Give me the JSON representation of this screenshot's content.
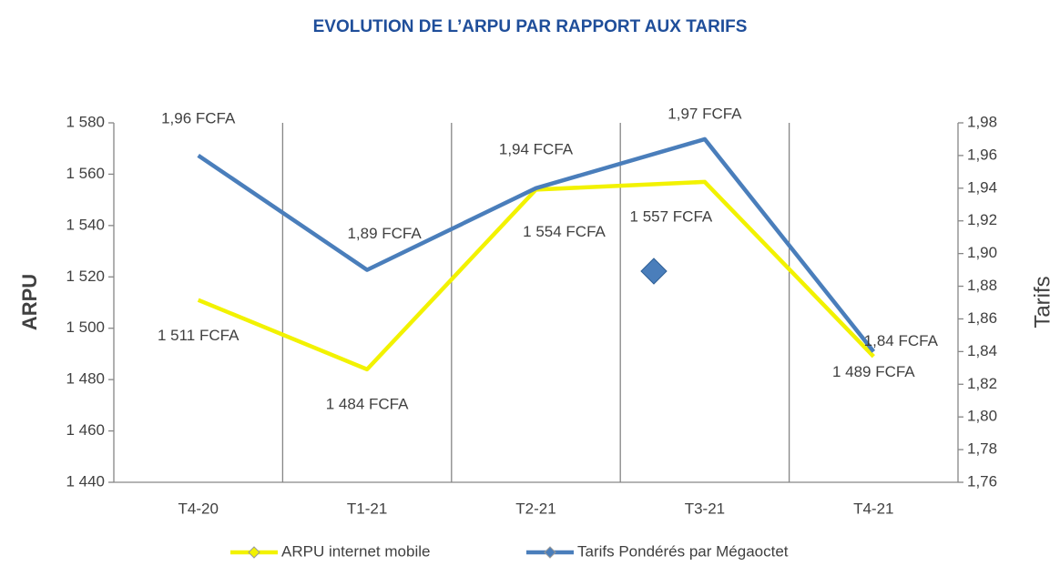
{
  "chart_data": {
    "type": "line",
    "title": "EVOLUTION DE L’ARPU PAR RAPPORT AUX TARIFS",
    "y_label": "ARPU",
    "y2_label": "Tarifs",
    "categories": [
      "T4-20",
      "T1-21",
      "T2-21",
      "T3-21",
      "T4-21"
    ],
    "series": [
      {
        "name": "ARPU internet mobile",
        "color": "#f2f200",
        "values": [
          1511,
          1484,
          1554,
          1557,
          1489
        ],
        "value_labels": [
          "1 511 FCFA",
          "1 484 FCFA",
          "1 554 FCFA",
          "1 557 FCFA",
          "1 489 FCFA"
        ]
      },
      {
        "name": "Tarifs Pondérés par Mégaoctet",
        "color": "#4a7ebb",
        "axis": "y2",
        "values": [
          1.96,
          1.89,
          1.94,
          1.97,
          1.84
        ],
        "value_labels": [
          "1,96 FCFA",
          "1,89 FCFA",
          "1,94 FCFA",
          "1,97 FCFA",
          "1,84 FCFA"
        ]
      }
    ],
    "ylim": [
      1440,
      1580
    ],
    "yticks": [
      {
        "value": 1440,
        "label": "1 440"
      },
      {
        "value": 1460,
        "label": "1 460"
      },
      {
        "value": 1480,
        "label": "1 480"
      },
      {
        "value": 1500,
        "label": "1 500"
      },
      {
        "value": 1520,
        "label": "1 520"
      },
      {
        "value": 1540,
        "label": "1 540"
      },
      {
        "value": 1560,
        "label": "1 560"
      },
      {
        "value": 1580,
        "label": "1 580"
      }
    ],
    "y2lim": [
      1.76,
      1.98
    ],
    "y2ticks": [
      {
        "value": 1.76,
        "label": "1,76"
      },
      {
        "value": 1.78,
        "label": "1,78"
      },
      {
        "value": 1.8,
        "label": "1,80"
      },
      {
        "value": 1.82,
        "label": "1,82"
      },
      {
        "value": 1.84,
        "label": "1,84"
      },
      {
        "value": 1.86,
        "label": "1,86"
      },
      {
        "value": 1.88,
        "label": "1,88"
      },
      {
        "value": 1.9,
        "label": "1,90"
      },
      {
        "value": 1.92,
        "label": "1,92"
      },
      {
        "value": 1.94,
        "label": "1,94"
      },
      {
        "value": 1.96,
        "label": "1,96"
      },
      {
        "value": 1.98,
        "label": "1,98"
      }
    ],
    "legend": "bottom"
  }
}
